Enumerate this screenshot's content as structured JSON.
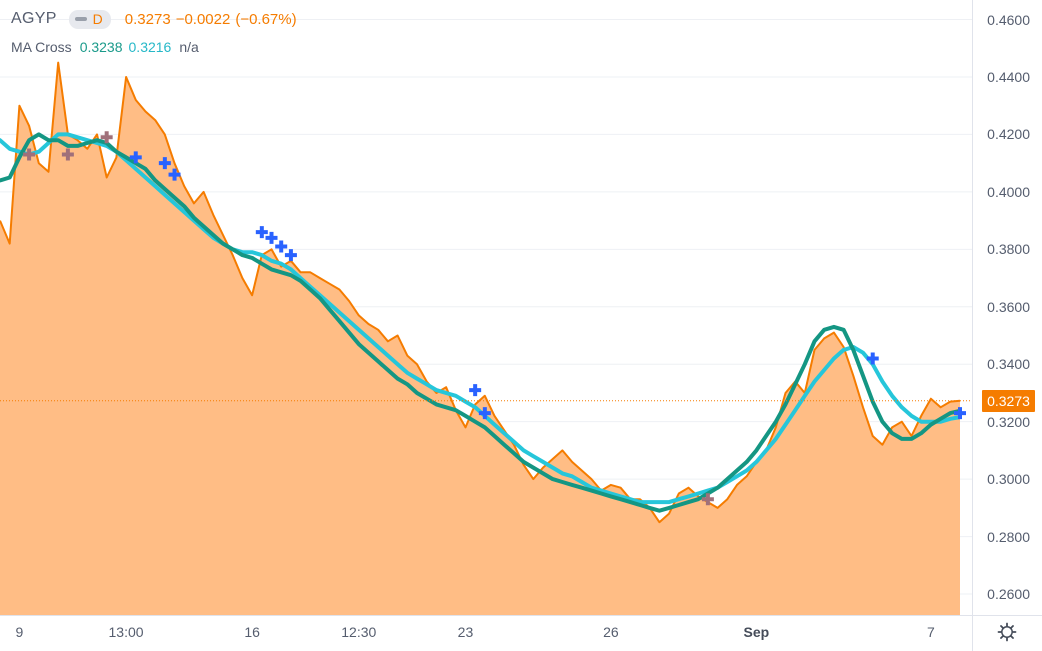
{
  "header": {
    "symbol": "AGYP",
    "resolution": "D",
    "last": "0.3273",
    "change": "−0.0022",
    "change_pct": "(−0.67%)"
  },
  "indicator": {
    "name": "MA Cross",
    "fast": "0.3238",
    "slow": "0.3216",
    "na": "n/a"
  },
  "price_badge": "0.3273",
  "colors": {
    "price_line": "#f57c00",
    "area_fill": "#ffbd85",
    "fast_ma": "#149683",
    "slow_ma": "#26c6da",
    "cross_up": "#2962ff",
    "cross_down": "#a0707a",
    "grid": "#eef0f4"
  },
  "chart_data": {
    "type": "area",
    "y_axis": {
      "ticks": [
        "0.4600",
        "0.4400",
        "0.4200",
        "0.4000",
        "0.3800",
        "0.3600",
        "0.3400",
        "0.3200",
        "0.3000",
        "0.2800",
        "0.2600"
      ],
      "tick_values": [
        0.46,
        0.44,
        0.42,
        0.4,
        0.38,
        0.36,
        0.34,
        0.32,
        0.3,
        0.28,
        0.26
      ],
      "ylim": [
        0.2527,
        0.4668
      ]
    },
    "x_axis": {
      "labels": [
        {
          "text": "9",
          "bold": false
        },
        {
          "text": "13:00",
          "bold": false
        },
        {
          "text": "16",
          "bold": false
        },
        {
          "text": "12:30",
          "bold": false
        },
        {
          "text": "23",
          "bold": false
        },
        {
          "text": "26",
          "bold": false
        },
        {
          "text": "Sep",
          "bold": true
        },
        {
          "text": "7",
          "bold": false
        }
      ],
      "label_bar_index": [
        2,
        13,
        26,
        37,
        48,
        63,
        78,
        96
      ]
    },
    "last_value": 0.3273,
    "series": [
      {
        "name": "AGYP",
        "style": "area",
        "values": [
          0.39,
          0.382,
          0.43,
          0.423,
          0.41,
          0.407,
          0.445,
          0.42,
          0.418,
          0.415,
          0.42,
          0.405,
          0.412,
          0.44,
          0.432,
          0.428,
          0.425,
          0.42,
          0.41,
          0.402,
          0.396,
          0.4,
          0.392,
          0.385,
          0.378,
          0.37,
          0.364,
          0.378,
          0.38,
          0.374,
          0.376,
          0.372,
          0.372,
          0.37,
          0.368,
          0.366,
          0.362,
          0.357,
          0.354,
          0.352,
          0.348,
          0.35,
          0.343,
          0.34,
          0.334,
          0.33,
          0.332,
          0.324,
          0.318,
          0.326,
          0.329,
          0.322,
          0.317,
          0.312,
          0.305,
          0.3,
          0.304,
          0.307,
          0.31,
          0.306,
          0.303,
          0.3,
          0.296,
          0.298,
          0.297,
          0.293,
          0.293,
          0.29,
          0.285,
          0.288,
          0.295,
          0.297,
          0.294,
          0.292,
          0.29,
          0.293,
          0.298,
          0.301,
          0.306,
          0.31,
          0.318,
          0.33,
          0.334,
          0.33,
          0.345,
          0.349,
          0.351,
          0.346,
          0.336,
          0.325,
          0.315,
          0.312,
          0.318,
          0.32,
          0.315,
          0.322,
          0.328,
          0.325,
          0.327,
          0.3273
        ]
      },
      {
        "name": "",
        "style": "line",
        "values": [
          0.404,
          0.405,
          0.412,
          0.418,
          0.42,
          0.418,
          0.418,
          0.416,
          0.416,
          0.417,
          0.418,
          0.417,
          0.414,
          0.412,
          0.41,
          0.408,
          0.404,
          0.401,
          0.398,
          0.395,
          0.391,
          0.388,
          0.385,
          0.382,
          0.38,
          0.378,
          0.377,
          0.375,
          0.373,
          0.372,
          0.371,
          0.369,
          0.366,
          0.363,
          0.359,
          0.355,
          0.351,
          0.347,
          0.344,
          0.341,
          0.338,
          0.335,
          0.333,
          0.33,
          0.328,
          0.326,
          0.325,
          0.324,
          0.322,
          0.32,
          0.318,
          0.315,
          0.312,
          0.309,
          0.306,
          0.304,
          0.302,
          0.3,
          0.299,
          0.298,
          0.297,
          0.296,
          0.295,
          0.294,
          0.293,
          0.292,
          0.291,
          0.29,
          0.289,
          0.29,
          0.291,
          0.292,
          0.293,
          0.295,
          0.297,
          0.3,
          0.303,
          0.306,
          0.31,
          0.315,
          0.32,
          0.326,
          0.333,
          0.34,
          0.348,
          0.352,
          0.353,
          0.352,
          0.345,
          0.336,
          0.327,
          0.32,
          0.316,
          0.314,
          0.314,
          0.316,
          0.319,
          0.321,
          0.323,
          0.3238
        ]
      },
      {
        "name": "",
        "style": "line",
        "values": [
          0.418,
          0.415,
          0.414,
          0.413,
          0.414,
          0.417,
          0.42,
          0.42,
          0.419,
          0.418,
          0.417,
          0.416,
          0.414,
          0.411,
          0.408,
          0.405,
          0.402,
          0.399,
          0.396,
          0.393,
          0.39,
          0.387,
          0.384,
          0.382,
          0.38,
          0.379,
          0.379,
          0.378,
          0.376,
          0.375,
          0.373,
          0.37,
          0.367,
          0.364,
          0.361,
          0.358,
          0.355,
          0.352,
          0.349,
          0.346,
          0.343,
          0.34,
          0.337,
          0.335,
          0.333,
          0.331,
          0.33,
          0.329,
          0.327,
          0.325,
          0.322,
          0.319,
          0.316,
          0.313,
          0.31,
          0.308,
          0.306,
          0.304,
          0.302,
          0.301,
          0.299,
          0.297,
          0.296,
          0.295,
          0.294,
          0.293,
          0.292,
          0.292,
          0.292,
          0.292,
          0.293,
          0.294,
          0.295,
          0.296,
          0.297,
          0.299,
          0.301,
          0.303,
          0.306,
          0.31,
          0.314,
          0.319,
          0.324,
          0.329,
          0.334,
          0.338,
          0.342,
          0.345,
          0.346,
          0.344,
          0.34,
          0.334,
          0.329,
          0.325,
          0.322,
          0.32,
          0.32,
          0.32,
          0.321,
          0.3216
        ]
      }
    ],
    "cross_markers": [
      {
        "bar": 3,
        "value": 0.413,
        "dir": "down"
      },
      {
        "bar": 7,
        "value": 0.413,
        "dir": "down"
      },
      {
        "bar": 11,
        "value": 0.419,
        "dir": "down"
      },
      {
        "bar": 14,
        "value": 0.412,
        "dir": "up"
      },
      {
        "bar": 17,
        "value": 0.41,
        "dir": "up"
      },
      {
        "bar": 18,
        "value": 0.406,
        "dir": "up"
      },
      {
        "bar": 27,
        "value": 0.386,
        "dir": "up"
      },
      {
        "bar": 28,
        "value": 0.384,
        "dir": "up"
      },
      {
        "bar": 29,
        "value": 0.381,
        "dir": "up"
      },
      {
        "bar": 30,
        "value": 0.378,
        "dir": "up"
      },
      {
        "bar": 49,
        "value": 0.331,
        "dir": "up"
      },
      {
        "bar": 50,
        "value": 0.323,
        "dir": "up"
      },
      {
        "bar": 73,
        "value": 0.293,
        "dir": "down"
      },
      {
        "bar": 90,
        "value": 0.342,
        "dir": "up"
      },
      {
        "bar": 99,
        "value": 0.323,
        "dir": "up"
      }
    ]
  }
}
